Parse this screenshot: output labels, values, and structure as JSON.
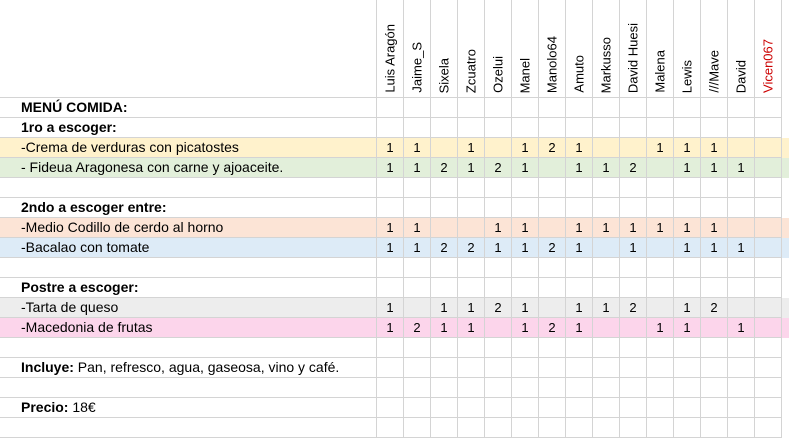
{
  "columns": [
    {
      "name": "Luis Aragón",
      "color": "#000000"
    },
    {
      "name": "Jaime_S",
      "color": "#000000"
    },
    {
      "name": "Sixela",
      "color": "#000000"
    },
    {
      "name": "Zcuatro",
      "color": "#000000"
    },
    {
      "name": "Ozelui",
      "color": "#000000"
    },
    {
      "name": "Manel",
      "color": "#000000"
    },
    {
      "name": "Manolo64",
      "color": "#000000"
    },
    {
      "name": "Amuto",
      "color": "#000000"
    },
    {
      "name": "Markusso",
      "color": "#000000"
    },
    {
      "name": "David Huesi",
      "color": "#000000"
    },
    {
      "name": "Malena",
      "color": "#000000"
    },
    {
      "name": "Lewis",
      "color": "#000000"
    },
    {
      "name": "///Mave",
      "color": "#000000"
    },
    {
      "name": "David",
      "color": "#000000"
    },
    {
      "name": "Vicen067",
      "color": "#cc0000"
    }
  ],
  "rows": [
    {
      "label": "MENÚ COMIDA:",
      "bold": true,
      "bg": "#ffffff",
      "values": [
        "",
        "",
        "",
        "",
        "",
        "",
        "",
        "",
        "",
        "",
        "",
        "",
        "",
        "",
        ""
      ]
    },
    {
      "label": "1ro a escoger:",
      "bold": true,
      "bg": "#ffffff",
      "values": [
        "",
        "",
        "",
        "",
        "",
        "",
        "",
        "",
        "",
        "",
        "",
        "",
        "",
        "",
        ""
      ]
    },
    {
      "label": "-Crema de verduras con picatostes",
      "bold": false,
      "bg": "#fff2cc",
      "values": [
        "1",
        "1",
        "",
        "1",
        "",
        "1",
        "2",
        "1",
        "",
        "",
        "1",
        "1",
        "1",
        "",
        ""
      ]
    },
    {
      "label": "- Fideua Aragonesa con carne y ajoaceite.",
      "bold": false,
      "bg": "#e2efda",
      "values": [
        "1",
        "1",
        "2",
        "1",
        "2",
        "1",
        "",
        "1",
        "1",
        "2",
        "",
        "1",
        "1",
        "1",
        ""
      ]
    },
    {
      "label": "",
      "bold": false,
      "bg": "#ffffff",
      "values": [
        "",
        "",
        "",
        "",
        "",
        "",
        "",
        "",
        "",
        "",
        "",
        "",
        "",
        "",
        ""
      ]
    },
    {
      "label": "2ndo a escoger entre:",
      "bold": true,
      "bg": "#ffffff",
      "values": [
        "",
        "",
        "",
        "",
        "",
        "",
        "",
        "",
        "",
        "",
        "",
        "",
        "",
        "",
        ""
      ]
    },
    {
      "label": "-Medio Codillo de cerdo al horno",
      "bold": false,
      "bg": "#fce4d6",
      "values": [
        "1",
        "1",
        "",
        "",
        "1",
        "1",
        "",
        "1",
        "1",
        "1",
        "1",
        "1",
        "1",
        "",
        ""
      ]
    },
    {
      "label": "-Bacalao con tomate",
      "bold": false,
      "bg": "#ddebf7",
      "values": [
        "1",
        "1",
        "2",
        "2",
        "1",
        "1",
        "2",
        "1",
        "",
        "1",
        "",
        "1",
        "1",
        "1",
        ""
      ]
    },
    {
      "label": "",
      "bold": false,
      "bg": "#ffffff",
      "values": [
        "",
        "",
        "",
        "",
        "",
        "",
        "",
        "",
        "",
        "",
        "",
        "",
        "",
        "",
        ""
      ]
    },
    {
      "label": "Postre a escoger:",
      "bold": true,
      "bg": "#ffffff",
      "values": [
        "",
        "",
        "",
        "",
        "",
        "",
        "",
        "",
        "",
        "",
        "",
        "",
        "",
        "",
        ""
      ]
    },
    {
      "label": "-Tarta de queso",
      "bold": false,
      "bg": "#ededed",
      "values": [
        "1",
        "",
        "1",
        "1",
        "2",
        "1",
        "",
        "1",
        "1",
        "2",
        "",
        "1",
        "2",
        "",
        ""
      ]
    },
    {
      "label": "-Macedonia de frutas",
      "bold": false,
      "bg": "#fcd5eb",
      "values": [
        "1",
        "2",
        "1",
        "1",
        "",
        "1",
        "2",
        "1",
        "",
        "",
        "1",
        "1",
        "",
        "1",
        ""
      ]
    },
    {
      "label": "",
      "bold": false,
      "bg": "#ffffff",
      "values": [
        "",
        "",
        "",
        "",
        "",
        "",
        "",
        "",
        "",
        "",
        "",
        "",
        "",
        "",
        ""
      ]
    },
    {
      "label": "",
      "bold": false,
      "bg": "#ffffff",
      "values": [
        "",
        "",
        "",
        "",
        "",
        "",
        "",
        "",
        "",
        "",
        "",
        "",
        "",
        "",
        ""
      ],
      "rich": {
        "b": "Incluye:",
        "t": " Pan, refresco, agua, gaseosa, vino y café."
      }
    },
    {
      "label": "",
      "bold": false,
      "bg": "#ffffff",
      "values": [
        "",
        "",
        "",
        "",
        "",
        "",
        "",
        "",
        "",
        "",
        "",
        "",
        "",
        "",
        ""
      ]
    },
    {
      "label": "",
      "bold": false,
      "bg": "#ffffff",
      "values": [
        "",
        "",
        "",
        "",
        "",
        "",
        "",
        "",
        "",
        "",
        "",
        "",
        "",
        "",
        ""
      ],
      "rich": {
        "b": "Precio:",
        "t": " 18€"
      }
    },
    {
      "label": "",
      "bold": false,
      "bg": "#ffffff",
      "values": [
        "",
        "",
        "",
        "",
        "",
        "",
        "",
        "",
        "",
        "",
        "",
        "",
        "",
        "",
        ""
      ]
    }
  ]
}
